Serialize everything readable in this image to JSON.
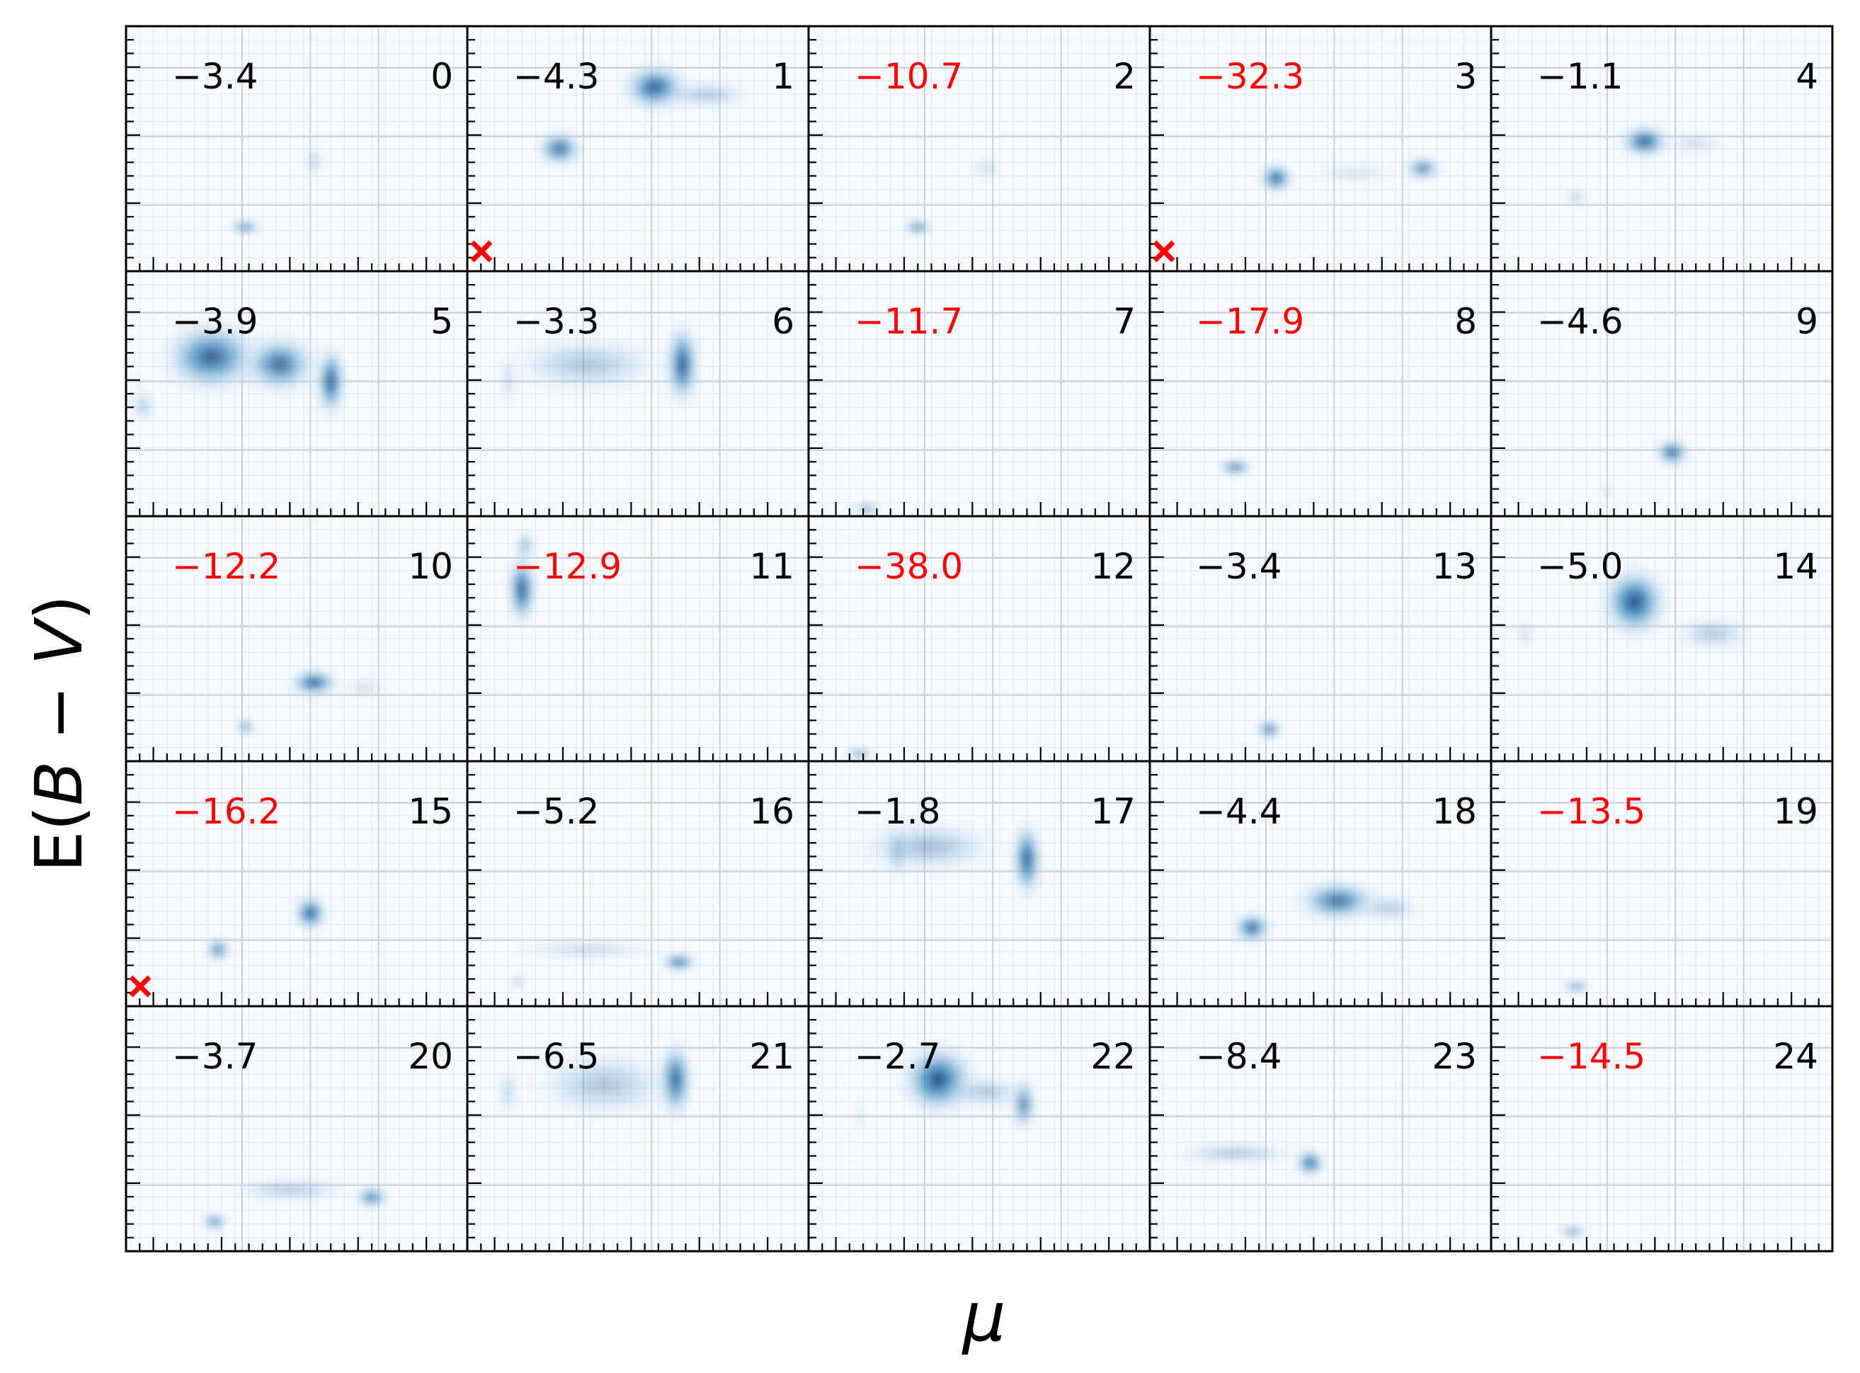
{
  "chart_data": {
    "type": "heatmap",
    "xlabel": "μ",
    "ylabel_prefix": "E(",
    "ylabel_b": "B",
    "ylabel_mid": " − ",
    "ylabel_v": "V",
    "ylabel_suffix": ")",
    "grid": true,
    "colormap": "Blues",
    "rows": 5,
    "cols": 5,
    "colors": {
      "normal_score": "#000000",
      "flagged_score": "#ff0000",
      "marker": "#ff0000",
      "background": "#f7fbff",
      "density_low": "#c6dbef",
      "density_mid": "#4292c6",
      "density_high": "#08306b",
      "grid_minor": "#dfe7ef",
      "grid_major": "#c8d0d8"
    },
    "panels": [
      {
        "id": "0",
        "score": "−3.4",
        "flagged": false,
        "marker": false,
        "blobs": [
          [
            0.35,
            0.18,
            0.04,
            0.018,
            1.0
          ],
          [
            0.55,
            0.45,
            0.025,
            0.06,
            0.25
          ]
        ]
      },
      {
        "id": "1",
        "score": "−4.3",
        "flagged": false,
        "marker": true,
        "blobs": [
          [
            0.27,
            0.5,
            0.055,
            0.06,
            0.85
          ],
          [
            0.55,
            0.75,
            0.08,
            0.08,
            0.9
          ],
          [
            0.7,
            0.72,
            0.12,
            0.05,
            0.3
          ]
        ]
      },
      {
        "id": "2",
        "score": "−10.7",
        "flagged": true,
        "marker": false,
        "blobs": [
          [
            0.32,
            0.18,
            0.035,
            0.02,
            1.0
          ],
          [
            0.52,
            0.42,
            0.04,
            0.04,
            0.2
          ]
        ]
      },
      {
        "id": "3",
        "score": "−32.3",
        "flagged": true,
        "marker": true,
        "blobs": [
          [
            0.37,
            0.38,
            0.04,
            0.05,
            0.95
          ],
          [
            0.8,
            0.42,
            0.045,
            0.04,
            0.75
          ],
          [
            0.6,
            0.4,
            0.12,
            0.04,
            0.15
          ]
        ]
      },
      {
        "id": "4",
        "score": "−1.1",
        "flagged": false,
        "marker": false,
        "blobs": [
          [
            0.45,
            0.53,
            0.06,
            0.055,
            0.95
          ],
          [
            0.25,
            0.3,
            0.025,
            0.04,
            0.3
          ],
          [
            0.6,
            0.52,
            0.08,
            0.04,
            0.2
          ]
        ]
      },
      {
        "id": "5",
        "score": "−3.9",
        "flagged": false,
        "marker": false,
        "blobs": [
          [
            0.25,
            0.65,
            0.12,
            0.12,
            0.85
          ],
          [
            0.45,
            0.62,
            0.09,
            0.1,
            0.8
          ],
          [
            0.6,
            0.55,
            0.035,
            0.12,
            0.95
          ],
          [
            0.05,
            0.45,
            0.03,
            0.06,
            0.3
          ]
        ]
      },
      {
        "id": "6",
        "score": "−3.3",
        "flagged": false,
        "marker": false,
        "blobs": [
          [
            0.63,
            0.62,
            0.04,
            0.14,
            0.95
          ],
          [
            0.35,
            0.62,
            0.2,
            0.1,
            0.3
          ],
          [
            0.12,
            0.55,
            0.02,
            0.1,
            0.2
          ]
        ]
      },
      {
        "id": "7",
        "score": "−11.7",
        "flagged": true,
        "marker": false,
        "blobs": [
          [
            0.17,
            0.03,
            0.035,
            0.015,
            0.95
          ]
        ]
      },
      {
        "id": "8",
        "score": "−17.9",
        "flagged": true,
        "marker": false,
        "blobs": [
          [
            0.25,
            0.2,
            0.04,
            0.025,
            0.95
          ]
        ]
      },
      {
        "id": "9",
        "score": "−4.6",
        "flagged": false,
        "marker": false,
        "blobs": [
          [
            0.53,
            0.26,
            0.04,
            0.045,
            0.95
          ],
          [
            0.34,
            0.1,
            0.015,
            0.03,
            0.25
          ]
        ]
      },
      {
        "id": "10",
        "score": "−12.2",
        "flagged": true,
        "marker": false,
        "blobs": [
          [
            0.55,
            0.32,
            0.06,
            0.045,
            0.95
          ],
          [
            0.35,
            0.14,
            0.025,
            0.03,
            0.6
          ],
          [
            0.7,
            0.3,
            0.06,
            0.03,
            0.2
          ]
        ]
      },
      {
        "id": "11",
        "score": "−12.9",
        "flagged": true,
        "marker": false,
        "blobs": [
          [
            0.16,
            0.7,
            0.035,
            0.12,
            0.95
          ],
          [
            0.17,
            0.88,
            0.025,
            0.06,
            0.4
          ]
        ]
      },
      {
        "id": "12",
        "score": "−38.0",
        "flagged": true,
        "marker": false,
        "blobs": [
          [
            0.15,
            0.03,
            0.035,
            0.015,
            0.95
          ]
        ]
      },
      {
        "id": "13",
        "score": "−3.4",
        "flagged": false,
        "marker": false,
        "blobs": [
          [
            0.35,
            0.13,
            0.03,
            0.03,
            0.95
          ]
        ]
      },
      {
        "id": "14",
        "score": "−5.0",
        "flagged": false,
        "marker": false,
        "blobs": [
          [
            0.42,
            0.65,
            0.08,
            0.12,
            0.95
          ],
          [
            0.65,
            0.52,
            0.1,
            0.06,
            0.3
          ],
          [
            0.1,
            0.52,
            0.02,
            0.06,
            0.2
          ]
        ]
      },
      {
        "id": "15",
        "score": "−16.2",
        "flagged": true,
        "marker": true,
        "blobs": [
          [
            0.54,
            0.38,
            0.04,
            0.06,
            0.95
          ],
          [
            0.27,
            0.23,
            0.03,
            0.04,
            0.8
          ]
        ]
      },
      {
        "id": "16",
        "score": "−5.2",
        "flagged": false,
        "marker": false,
        "blobs": [
          [
            0.62,
            0.18,
            0.045,
            0.03,
            0.9
          ],
          [
            0.35,
            0.23,
            0.18,
            0.03,
            0.25
          ],
          [
            0.15,
            0.1,
            0.02,
            0.03,
            0.3
          ]
        ]
      },
      {
        "id": "17",
        "score": "−1.8",
        "flagged": false,
        "marker": false,
        "blobs": [
          [
            0.64,
            0.6,
            0.035,
            0.13,
            0.95
          ],
          [
            0.35,
            0.65,
            0.18,
            0.09,
            0.35
          ],
          [
            0.26,
            0.63,
            0.025,
            0.1,
            0.3
          ]
        ]
      },
      {
        "id": "18",
        "score": "−4.4",
        "flagged": false,
        "marker": false,
        "blobs": [
          [
            0.3,
            0.32,
            0.045,
            0.05,
            0.95
          ],
          [
            0.55,
            0.43,
            0.1,
            0.07,
            0.8
          ],
          [
            0.7,
            0.4,
            0.08,
            0.05,
            0.3
          ]
        ]
      },
      {
        "id": "19",
        "score": "−13.5",
        "flagged": true,
        "marker": false,
        "blobs": [
          [
            0.25,
            0.08,
            0.035,
            0.015,
            0.95
          ]
        ]
      },
      {
        "id": "20",
        "score": "−3.7",
        "flagged": false,
        "marker": false,
        "blobs": [
          [
            0.26,
            0.12,
            0.03,
            0.025,
            0.9
          ],
          [
            0.72,
            0.22,
            0.04,
            0.035,
            0.85
          ],
          [
            0.48,
            0.25,
            0.16,
            0.04,
            0.3
          ]
        ]
      },
      {
        "id": "21",
        "score": "−6.5",
        "flagged": false,
        "marker": false,
        "blobs": [
          [
            0.61,
            0.7,
            0.04,
            0.13,
            0.95
          ],
          [
            0.4,
            0.68,
            0.18,
            0.12,
            0.3
          ],
          [
            0.12,
            0.65,
            0.03,
            0.1,
            0.2
          ]
        ]
      },
      {
        "id": "22",
        "score": "−2.7",
        "flagged": false,
        "marker": false,
        "blobs": [
          [
            0.38,
            0.7,
            0.09,
            0.12,
            0.95
          ],
          [
            0.63,
            0.6,
            0.03,
            0.09,
            0.75
          ],
          [
            0.52,
            0.65,
            0.1,
            0.06,
            0.3
          ],
          [
            0.15,
            0.55,
            0.01,
            0.07,
            0.2
          ]
        ]
      },
      {
        "id": "23",
        "score": "−8.4",
        "flagged": false,
        "marker": false,
        "blobs": [
          [
            0.47,
            0.36,
            0.035,
            0.045,
            0.95
          ],
          [
            0.25,
            0.4,
            0.16,
            0.035,
            0.35
          ],
          [
            0.02,
            0.28,
            0.01,
            0.03,
            0.2
          ]
        ]
      },
      {
        "id": "24",
        "score": "−14.5",
        "flagged": true,
        "marker": false,
        "blobs": [
          [
            0.24,
            0.08,
            0.035,
            0.015,
            0.95
          ]
        ]
      }
    ]
  }
}
